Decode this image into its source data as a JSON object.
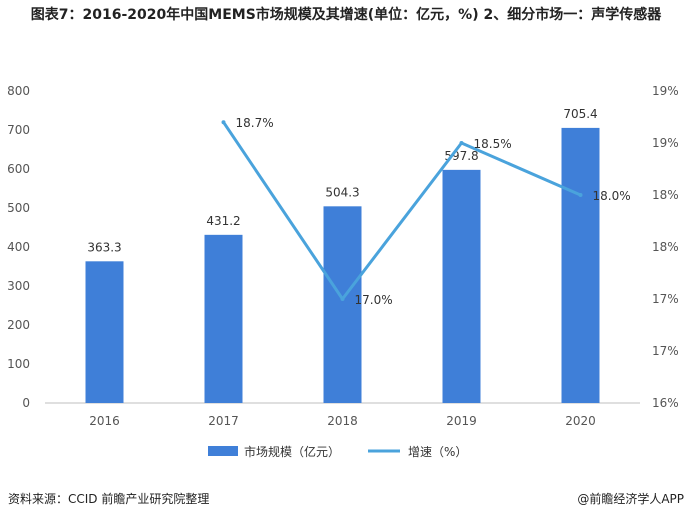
{
  "title": "图表7：2016-2020年中国MEMS市场规模及其增速(单位：亿元，%) 2、细分市场一：声学传感器",
  "source": "资料来源：CCID 前瞻产业研究院整理",
  "brand": "@前瞻经济学人APP",
  "colors": {
    "bar": "#3f7fd8",
    "line": "#4aa3dc",
    "axis": "#bfbfbf"
  },
  "chart_data": {
    "type": "bar",
    "categories": [
      "2016",
      "2017",
      "2018",
      "2019",
      "2020"
    ],
    "series": [
      {
        "name": "市场规模（亿元）",
        "type": "bar",
        "axis": "left",
        "values": [
          363.3,
          431.2,
          504.3,
          597.8,
          705.4
        ],
        "labels": [
          "363.3",
          "431.2",
          "504.3",
          "597.8",
          "705.4"
        ]
      },
      {
        "name": "增速（%）",
        "type": "line",
        "axis": "right",
        "values": [
          null,
          18.7,
          17.0,
          18.5,
          18.0
        ],
        "labels": [
          "",
          "18.7%",
          "17.0%",
          "18.5%",
          "18.0%"
        ]
      }
    ],
    "ylim_left": [
      0,
      800
    ],
    "left_ticks": [
      "0",
      "100",
      "200",
      "300",
      "400",
      "500",
      "600",
      "700",
      "800"
    ],
    "ylim_right": [
      16,
      19
    ],
    "right_ticks": [
      "16%",
      "17%",
      "17%",
      "18%",
      "18%",
      "19%",
      "19%"
    ],
    "grid": false,
    "legend_position": "bottom"
  }
}
